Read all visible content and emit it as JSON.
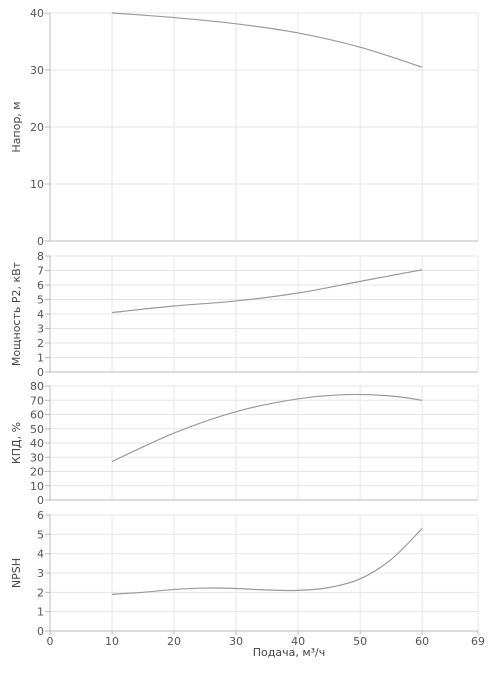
{
  "chart_data": [
    {
      "type": "line",
      "ylabel": "Напор, м",
      "ylim": [
        0,
        40
      ],
      "yticks": [
        0,
        10,
        20,
        30,
        40
      ],
      "xlim": [
        0,
        69
      ],
      "grid": true,
      "series": [
        {
          "x": [
            10,
            20,
            30,
            40,
            50,
            60
          ],
          "y": [
            40.0,
            39.2,
            38.1,
            36.5,
            34.0,
            30.5
          ]
        }
      ]
    },
    {
      "type": "line",
      "ylabel": "Мощность P2, кВт",
      "ylim": [
        0,
        8
      ],
      "yticks": [
        0,
        1,
        2,
        3,
        4,
        5,
        6,
        7,
        8
      ],
      "xlim": [
        0,
        69
      ],
      "grid": true,
      "series": [
        {
          "x": [
            10,
            20,
            30,
            40,
            50,
            60
          ],
          "y": [
            4.1,
            4.55,
            4.9,
            5.45,
            6.25,
            7.05
          ]
        }
      ]
    },
    {
      "type": "line",
      "ylabel": "КПД, %",
      "ylim": [
        0,
        80
      ],
      "yticks": [
        0,
        10,
        20,
        30,
        40,
        50,
        60,
        70,
        80
      ],
      "xlim": [
        0,
        69
      ],
      "grid": true,
      "series": [
        {
          "x": [
            10,
            20,
            30,
            40,
            48,
            55,
            60
          ],
          "y": [
            27,
            47,
            62,
            71,
            74,
            73,
            70
          ]
        }
      ]
    },
    {
      "type": "line",
      "ylabel": "NPSH",
      "ylim": [
        0,
        6
      ],
      "yticks": [
        0,
        1,
        2,
        3,
        4,
        5,
        6
      ],
      "xlim": [
        0,
        69
      ],
      "xticks": [
        0,
        10,
        20,
        30,
        40,
        50,
        60,
        69
      ],
      "xlabel": "Подача, м³/ч",
      "grid": true,
      "series": [
        {
          "x": [
            10,
            15,
            20,
            25,
            30,
            35,
            40,
            45,
            50,
            55,
            60
          ],
          "y": [
            1.9,
            2.0,
            2.15,
            2.22,
            2.2,
            2.12,
            2.1,
            2.25,
            2.7,
            3.7,
            5.3
          ]
        }
      ]
    }
  ]
}
